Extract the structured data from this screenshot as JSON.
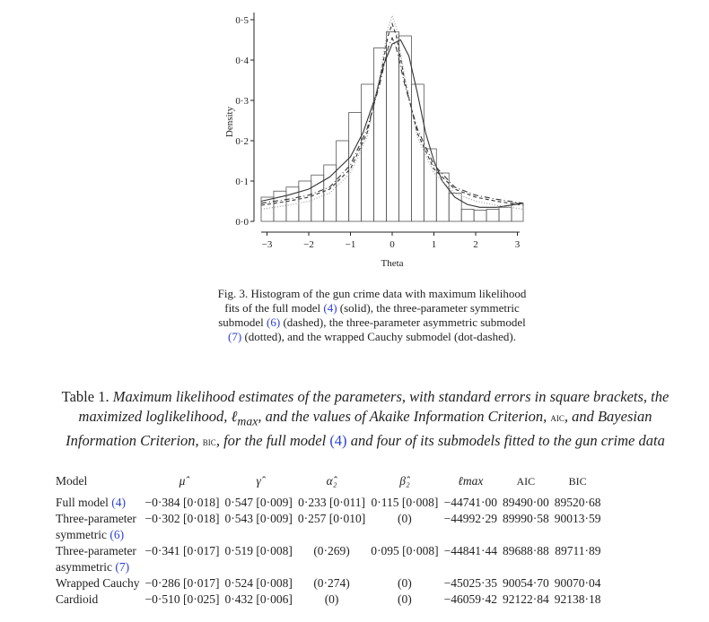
{
  "chart_data": {
    "type": "histogram",
    "xlabel": "Theta",
    "ylabel": "Density",
    "xlim": [
      -3.14,
      3.14
    ],
    "ylim": [
      0,
      0.5
    ],
    "xticks": [
      "−3",
      "−2",
      "−1",
      "0",
      "1",
      "2",
      "3"
    ],
    "yticks": [
      "0·0",
      "0·1",
      "0·2",
      "0·3",
      "0·4",
      "0·5"
    ],
    "bin_width": 0.3,
    "bins_start": -3.14,
    "densities": [
      0.06,
      0.075,
      0.085,
      0.1,
      0.115,
      0.14,
      0.2,
      0.27,
      0.34,
      0.43,
      0.47,
      0.46,
      0.34,
      0.18,
      0.12,
      0.07,
      0.03,
      0.028,
      0.03,
      0.035,
      0.045
    ],
    "curves": [
      {
        "style": "solid",
        "x": [
          -3.14,
          -2.5,
          -2,
          -1.5,
          -1,
          -0.7,
          -0.4,
          -0.2,
          0,
          0.2,
          0.4,
          0.6,
          0.8,
          1,
          1.2,
          1.5,
          1.8,
          2.1,
          2.5,
          3.14
        ],
        "y": [
          0.05,
          0.065,
          0.08,
          0.11,
          0.16,
          0.22,
          0.31,
          0.39,
          0.44,
          0.45,
          0.41,
          0.32,
          0.22,
          0.15,
          0.1,
          0.06,
          0.042,
          0.035,
          0.035,
          0.045
        ]
      },
      {
        "style": "dashed",
        "x": [
          -3.14,
          -2.5,
          -2,
          -1.5,
          -1,
          -0.6,
          -0.3,
          -0.1,
          0,
          0.1,
          0.3,
          0.6,
          1,
          1.5,
          2,
          2.5,
          3.14
        ],
        "y": [
          0.04,
          0.05,
          0.06,
          0.08,
          0.13,
          0.22,
          0.35,
          0.46,
          0.49,
          0.46,
          0.35,
          0.22,
          0.13,
          0.08,
          0.06,
          0.05,
          0.04
        ]
      },
      {
        "style": "dotted",
        "x": [
          -3.14,
          -2.5,
          -2,
          -1.5,
          -1,
          -0.6,
          -0.3,
          -0.1,
          0,
          0.1,
          0.3,
          0.6,
          1,
          1.5,
          2,
          2.5,
          3.14
        ],
        "y": [
          0.03,
          0.04,
          0.05,
          0.07,
          0.12,
          0.21,
          0.36,
          0.48,
          0.51,
          0.48,
          0.36,
          0.21,
          0.12,
          0.07,
          0.05,
          0.04,
          0.03
        ]
      },
      {
        "style": "dot-dashed",
        "x": [
          -3.14,
          -2.5,
          -2,
          -1.5,
          -1,
          -0.6,
          -0.3,
          -0.1,
          0,
          0.1,
          0.3,
          0.6,
          1,
          1.5,
          2,
          2.5,
          3.14
        ],
        "y": [
          0.045,
          0.055,
          0.065,
          0.085,
          0.14,
          0.23,
          0.34,
          0.43,
          0.455,
          0.43,
          0.34,
          0.23,
          0.14,
          0.085,
          0.065,
          0.055,
          0.045
        ]
      }
    ]
  },
  "caption": {
    "a": "Fig. 3. Histogram of the gun crime data with maximum likelihood fits of the full model ",
    "r1": "(4)",
    "b": " (solid), the three-parameter symmetric submodel ",
    "r2": "(6)",
    "c": " (dashed), the three-parameter asymmetric submodel ",
    "r3": "(7)",
    "d": " (dotted), and the wrapped Cauchy submodel (dot-dashed)."
  },
  "table_caption": {
    "label": "Table 1.",
    "t1": " Maximum likelihood estimates of the parameters, with standard errors in square brackets, the maximized loglikelihood, ℓ",
    "sub": "max",
    "t2": ", and the values of Akaike Information Criterion, ",
    "aic": "aic",
    "t3": ", and Bayesian Information Criterion, ",
    "bic": "bic",
    "t4": ", for the full model ",
    "ref": "(4)",
    "t5": " and four of its submodels fitted to the gun crime data"
  },
  "table": {
    "headers": [
      "Model",
      "μ̂",
      "γ̂",
      "α̂₂",
      "β̂₂",
      "ℓmax",
      "AIC",
      "BIC"
    ],
    "rows": [
      {
        "m1": "Full model ",
        "ref": "(4)",
        "m2": "",
        "mu": "−0·384 [0·018]",
        "gamma": "0·547 [0·009]",
        "alpha": "0·233 [0·011]",
        "beta": "0·115 [0·008]",
        "lmax": "−44741·00",
        "aic": "89490·00",
        "bic": "89520·68"
      },
      {
        "m1": "Three-parameter",
        "ref": "(6)",
        "m2": "symmetric ",
        "mu": "−0·302 [0·018]",
        "gamma": "0·543 [0·009]",
        "alpha": "0·257 [0·010]",
        "beta": "(0)",
        "lmax": "−44992·29",
        "aic": "89990·58",
        "bic": "90013·59"
      },
      {
        "m1": "Three-parameter",
        "ref": "(7)",
        "m2": "asymmetric ",
        "mu": "−0·341 [0·017]",
        "gamma": "0·519 [0·008]",
        "alpha": "(0·269)",
        "beta": "0·095 [0·008]",
        "lmax": "−44841·44",
        "aic": "89688·88",
        "bic": "89711·89"
      },
      {
        "m1": "Wrapped Cauchy",
        "ref": "",
        "m2": "",
        "mu": "−0·286 [0·017]",
        "gamma": "0·524 [0·008]",
        "alpha": "(0·274)",
        "beta": "(0)",
        "lmax": "−45025·35",
        "aic": "90054·70",
        "bic": "90070·04"
      },
      {
        "m1": "Cardioid",
        "ref": "",
        "m2": "",
        "mu": "−0·510 [0·025]",
        "gamma": "0·432 [0·006]",
        "alpha": "(0)",
        "beta": "(0)",
        "lmax": "−46059·42",
        "aic": "92122·84",
        "bic": "92138·18"
      }
    ]
  }
}
